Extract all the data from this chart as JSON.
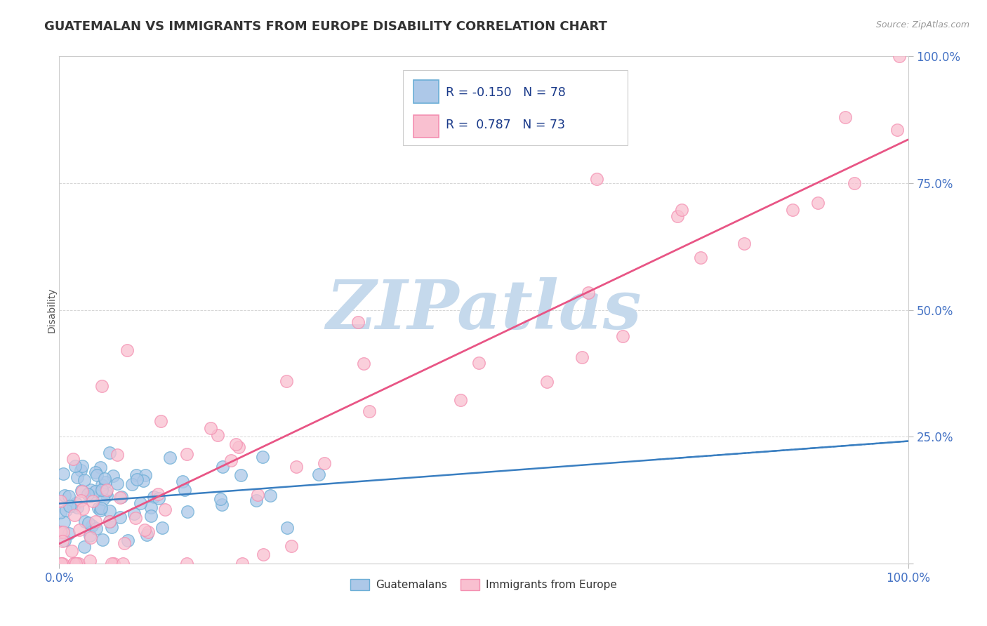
{
  "title": "GUATEMALAN VS IMMIGRANTS FROM EUROPE DISABILITY CORRELATION CHART",
  "source": "Source: ZipAtlas.com",
  "ylabel": "Disability",
  "r_blue": -0.15,
  "n_blue": 78,
  "r_pink": 0.787,
  "n_pink": 73,
  "blue_face": "#adc8e8",
  "blue_edge": "#6baed6",
  "pink_face": "#f9c0d0",
  "pink_edge": "#f48fb1",
  "blue_line_color": "#3a7fc1",
  "pink_line_color": "#e85585",
  "watermark_color": "#c5d9ec",
  "bg_color": "#ffffff",
  "grid_color": "#cccccc",
  "axis_label_color": "#4472c4",
  "title_color": "#333333",
  "source_color": "#999999",
  "legend_text_color": "#1a3a8a",
  "legend_blue_label": "Guatemalans",
  "legend_pink_label": "Immigrants from Europe"
}
